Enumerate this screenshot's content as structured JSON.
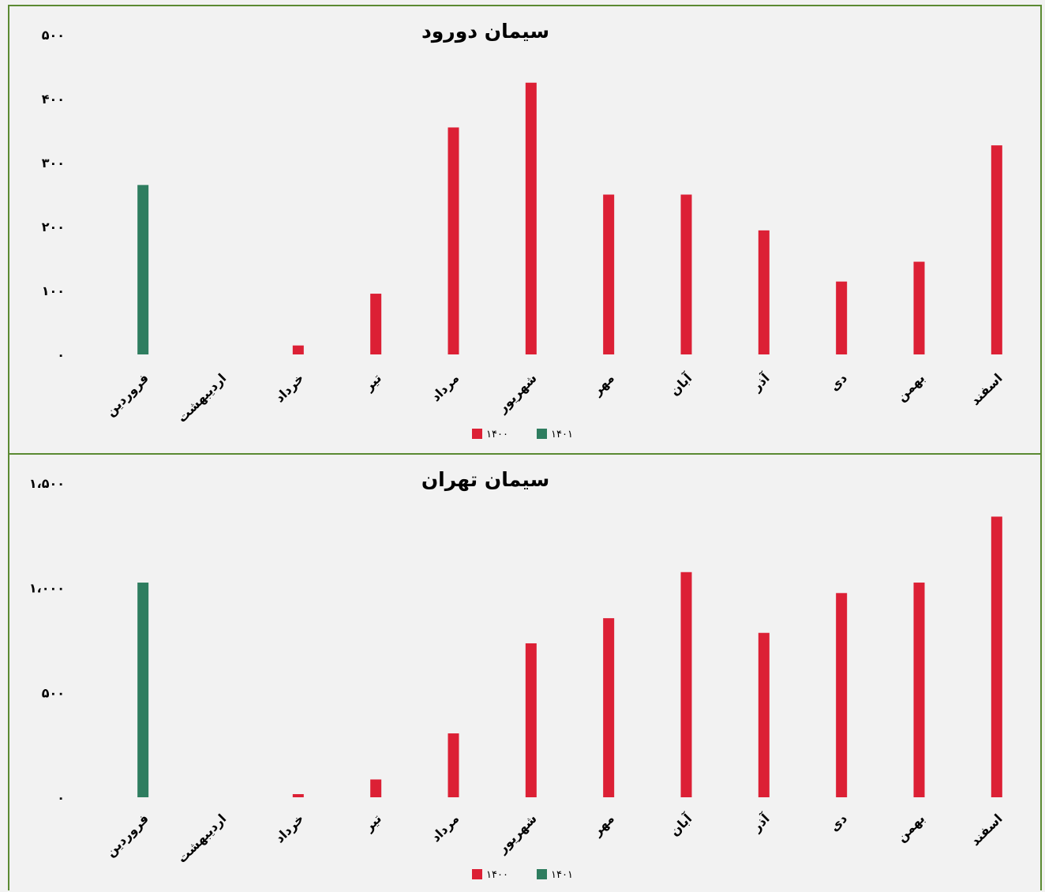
{
  "chart_data": [
    {
      "type": "bar",
      "title": "سیمان دورود",
      "categories": [
        "فروردین",
        "اردیبهشت",
        "خرداد",
        "تیر",
        "مرداد",
        "شهریور",
        "مهر",
        "آبان",
        "آذر",
        "دی",
        "بهمن",
        "اسفند"
      ],
      "series": [
        {
          "name": "۱۴۰۰",
          "color": "#dc2035",
          "values": [
            null,
            null,
            14,
            95,
            355,
            425,
            250,
            250,
            194,
            114,
            145,
            327
          ]
        },
        {
          "name": "۱۴۰۱",
          "color": "#2e7d5f",
          "values": [
            265,
            null,
            null,
            null,
            null,
            null,
            null,
            null,
            null,
            null,
            null,
            null
          ]
        }
      ],
      "ylim": [
        0,
        500
      ],
      "yticks": [
        0,
        100,
        200,
        300,
        400,
        500
      ],
      "ytick_labels": [
        "۰",
        "۱۰۰",
        "۲۰۰",
        "۳۰۰",
        "۴۰۰",
        "۵۰۰"
      ],
      "legend_order": [
        "۱۴۰۰",
        "۱۴۰۱"
      ],
      "legend_position": "bottom",
      "grid": false
    },
    {
      "type": "bar",
      "title": "سیمان تهران",
      "categories": [
        "فروردین",
        "اردیبهشت",
        "خرداد",
        "تیر",
        "مرداد",
        "شهریور",
        "مهر",
        "آبان",
        "آذر",
        "دی",
        "بهمن",
        "اسفند"
      ],
      "series": [
        {
          "name": "۱۴۰۰",
          "color": "#dc2035",
          "values": [
            null,
            null,
            15,
            85,
            305,
            735,
            855,
            1075,
            785,
            975,
            1025,
            1340
          ]
        },
        {
          "name": "۱۴۰۱",
          "color": "#2e7d5f",
          "values": [
            1025,
            null,
            null,
            null,
            null,
            null,
            null,
            null,
            null,
            null,
            null,
            null
          ]
        }
      ],
      "ylim": [
        0,
        1500
      ],
      "yticks": [
        0,
        500,
        1000,
        1500
      ],
      "ytick_labels": [
        "۰",
        "۵۰۰",
        "۱،۰۰۰",
        "۱،۵۰۰"
      ],
      "legend_order": [
        "۱۴۰۰",
        "۱۴۰۱"
      ],
      "legend_position": "bottom",
      "grid": false
    }
  ]
}
